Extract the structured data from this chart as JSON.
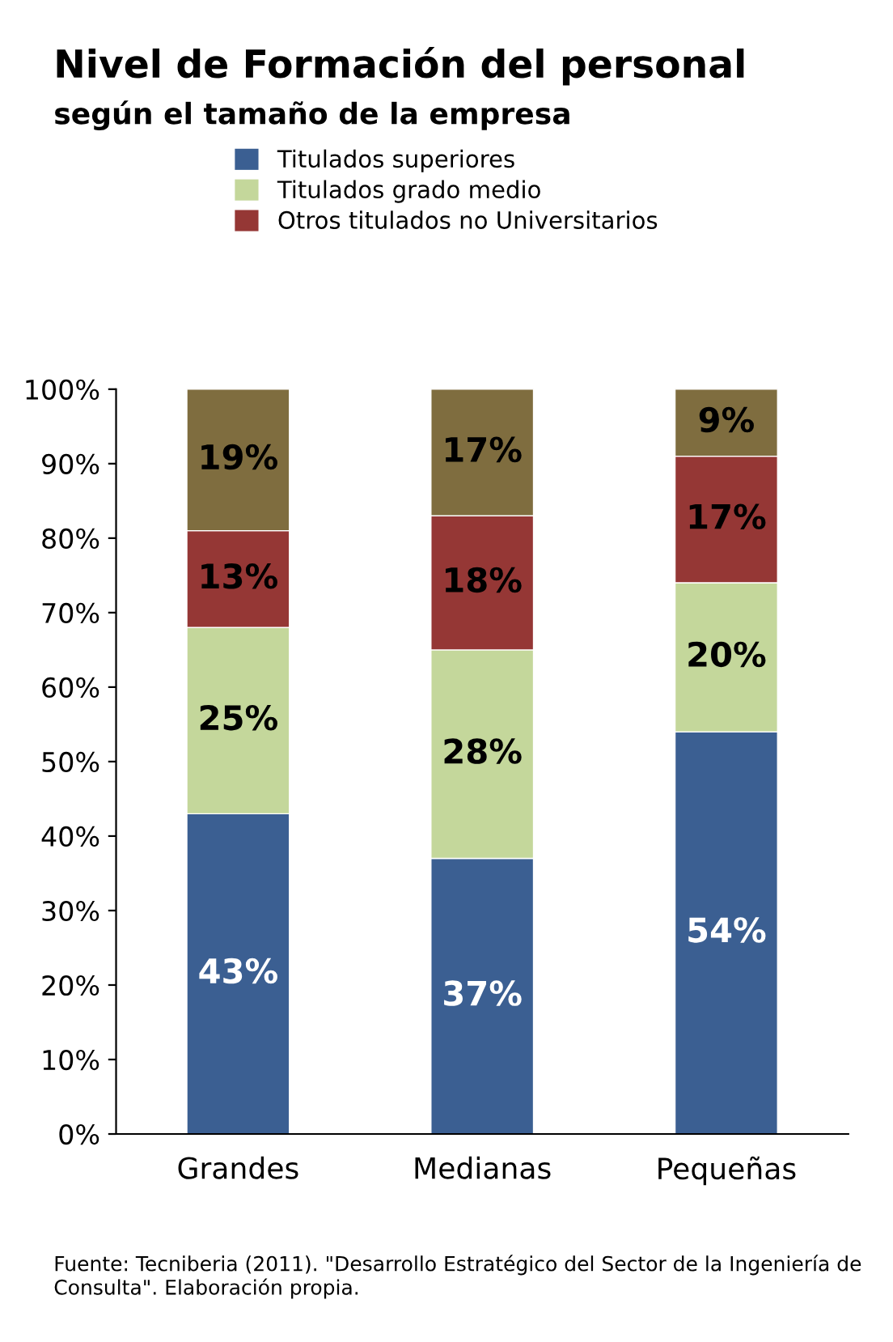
{
  "chart_data": {
    "type": "bar",
    "title": "Nivel de Formación del personal",
    "subtitle": "según el tamaño de la empresa",
    "categories": [
      "Grandes",
      "Medianas",
      "Pequeñas"
    ],
    "stacked": true,
    "series": [
      {
        "name": "Titulados superiores",
        "color": "#3b5f92",
        "values": [
          43,
          37,
          54
        ],
        "value_labels": [
          "43%",
          "37%",
          "54%"
        ]
      },
      {
        "name": "Titulados grado medio",
        "color": "#c4d79b",
        "values": [
          25,
          28,
          20
        ],
        "value_labels": [
          "25%",
          "28%",
          "20%"
        ]
      },
      {
        "name": "Otros titulados no Universitarios",
        "color": "#953735",
        "values": [
          13,
          18,
          17
        ],
        "value_labels": [
          "13%",
          "18%",
          "17%"
        ]
      },
      {
        "color": "#7f6d3f",
        "values": [
          19,
          17,
          9
        ],
        "value_labels": [
          "19%",
          "17%",
          "9%"
        ]
      }
    ],
    "ylim": [
      0,
      100
    ],
    "yticks": [
      {
        "value": 0,
        "label": "0%"
      },
      {
        "value": 10,
        "label": "10%"
      },
      {
        "value": 20,
        "label": "20%"
      },
      {
        "value": 30,
        "label": "30%"
      },
      {
        "value": 40,
        "label": "40%"
      },
      {
        "value": 50,
        "label": "50%"
      },
      {
        "value": 60,
        "label": "60%"
      },
      {
        "value": 70,
        "label": "70%"
      },
      {
        "value": 80,
        "label": "80%"
      },
      {
        "value": 90,
        "label": "90%"
      },
      {
        "value": 100,
        "label": "100%"
      }
    ],
    "grid": false,
    "legend": "top",
    "annotations": [
      "Fuente: Tecniberia (2011). \"Desarrollo Estratégico del Sector de la Ingeniería de Consulta\". Elaboración propia."
    ]
  }
}
